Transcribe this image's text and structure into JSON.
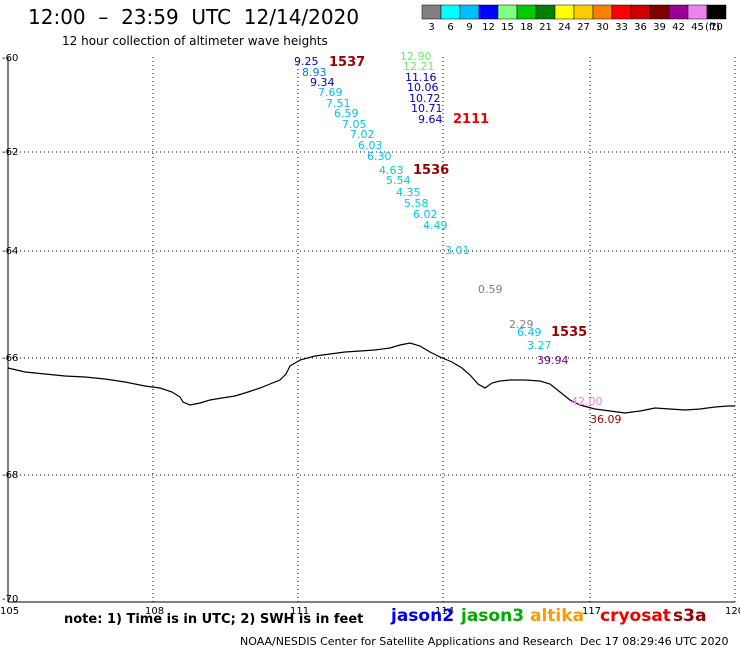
{
  "header": {
    "title": "12:00  –  23:59  UTC  12/14/2020",
    "subtitle": "12 hour collection of altimeter wave heights"
  },
  "scale": {
    "labels": [
      "3",
      "6",
      "9",
      "12",
      "15",
      "18",
      "21",
      "24",
      "27",
      "30",
      "33",
      "36",
      "39",
      "42",
      "45",
      "70"
    ],
    "unit": "(ft)",
    "colors": [
      "#808080",
      "#00ffff",
      "#00bfff",
      "#0000ff",
      "#80ff80",
      "#00cc00",
      "#008000",
      "#ffff00",
      "#ffcc00",
      "#ff8000",
      "#ff0000",
      "#cc0000",
      "#800000",
      "#990099",
      "#ee82ee",
      "#000000"
    ]
  },
  "axes": {
    "lat_labels": [
      "-60",
      "-62",
      "-64",
      "-66",
      "-68",
      "-70"
    ],
    "lon_labels": [
      "105",
      "108",
      "111",
      "114",
      "117",
      "120"
    ]
  },
  "observations": [
    {
      "text": "9.25",
      "color": "#0000c8"
    },
    {
      "text": "8.93",
      "color": "#0080ff"
    },
    {
      "text": "9.34",
      "color": "#0000c8"
    },
    {
      "text": "7.69",
      "color": "#00bfff"
    },
    {
      "text": "7.51",
      "color": "#00bfff"
    },
    {
      "text": "6.59",
      "color": "#00bfff"
    },
    {
      "text": "7.05",
      "color": "#00bfff"
    },
    {
      "text": "7.02",
      "color": "#00bfff"
    },
    {
      "text": "6.03",
      "color": "#00bfff"
    },
    {
      "text": "6.30",
      "color": "#00bfff"
    },
    {
      "text": "4.63",
      "color": "#00d0d0"
    },
    {
      "text": "5.54",
      "color": "#00d0d0"
    },
    {
      "text": "4.35",
      "color": "#00d0d0"
    },
    {
      "text": "5.58",
      "color": "#00d0d0"
    },
    {
      "text": "6.02",
      "color": "#00bfff"
    },
    {
      "text": "4.49",
      "color": "#00d0d0"
    },
    {
      "text": "3.01",
      "color": "#00d0d0"
    },
    {
      "text": "12.90",
      "color": "#66ee66"
    },
    {
      "text": "12.21",
      "color": "#66ee66"
    },
    {
      "text": "11.16",
      "color": "#0000c8"
    },
    {
      "text": "10.06",
      "color": "#0000c8"
    },
    {
      "text": "10.72",
      "color": "#0000c8"
    },
    {
      "text": "10.71",
      "color": "#0000c8"
    },
    {
      "text": "9.64",
      "color": "#0000c8"
    },
    {
      "text": "0.59",
      "color": "#808080"
    },
    {
      "text": "2.29",
      "color": "#808080"
    },
    {
      "text": "6.49",
      "color": "#00bfff"
    },
    {
      "text": "3.27",
      "color": "#00d0d0"
    },
    {
      "text": "39.94",
      "color": "#800080"
    },
    {
      "text": "42.00",
      "color": "#ee82ee"
    },
    {
      "text": "36.09",
      "color": "#990000"
    }
  ],
  "passes": [
    {
      "text": "1537",
      "color": "#990000"
    },
    {
      "text": "2111",
      "color": "#ee0000"
    },
    {
      "text": "1536",
      "color": "#990000"
    },
    {
      "text": "1535",
      "color": "#990000"
    }
  ],
  "footer": {
    "note": "note:  1) Time is in UTC;  2) SWH is in feet",
    "credit": "NOAA/NESDIS Center for Satellite Applications and Research",
    "timestamp": "Dec 17 08:29:46 UTC 2020"
  },
  "satellites": [
    {
      "name": "jason2",
      "color": "#0000ee"
    },
    {
      "name": "jason3",
      "color": "#00aa00"
    },
    {
      "name": "altika",
      "color": "#ff9900"
    },
    {
      "name": "cryosat",
      "color": "#ee0000"
    },
    {
      "name": "s3a",
      "color": "#990000"
    }
  ]
}
